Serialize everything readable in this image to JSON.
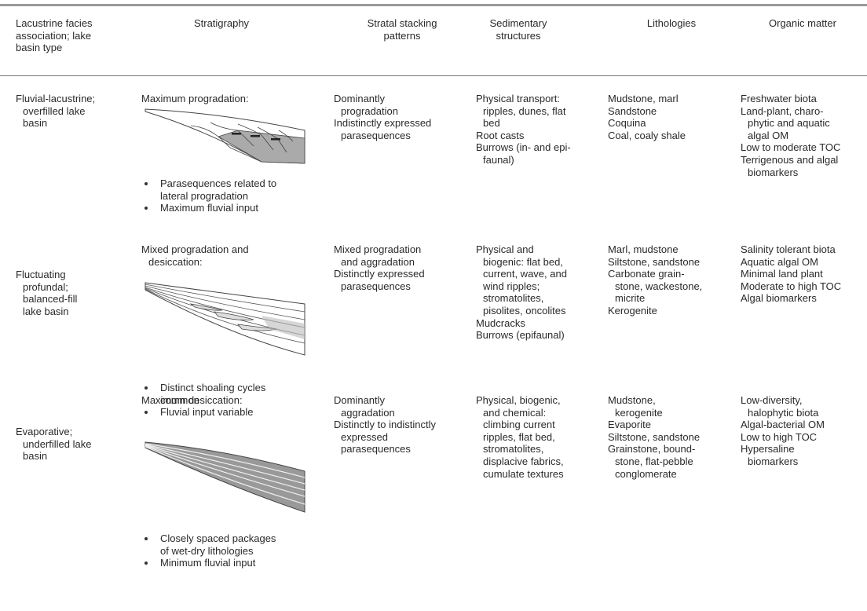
{
  "header": [
    [
      "Lacustrine facies",
      "association; lake",
      "basin type"
    ],
    [
      "Stratigraphy"
    ],
    [
      "Stratal stacking",
      "patterns"
    ],
    [
      "Sedimentary",
      "structures"
    ],
    [
      "Lithologies"
    ],
    [
      "Organic matter"
    ]
  ],
  "rows": [
    {
      "facies": [
        [
          "Fluvial-lacustrine;",
          "overfilled lake",
          "basin"
        ]
      ],
      "stratigraphy": {
        "heading": [
          "Maximum progradation:"
        ],
        "bullets": [
          [
            "Parasequences related to",
            "lateral progradation"
          ],
          [
            "Maximum fluvial input"
          ]
        ]
      },
      "stacking": [
        [
          "Dominantly",
          "progradation"
        ],
        [
          "Indistinctly expressed",
          "parasequences"
        ]
      ],
      "sedimentary": [
        [
          "Physical transport:",
          "ripples, dunes, flat",
          "bed"
        ],
        [
          "Root casts"
        ],
        [
          "Burrows (in- and epi-",
          "faunal)"
        ]
      ],
      "lithologies": [
        [
          "Mudstone, marl"
        ],
        [
          "Sandstone"
        ],
        [
          "Coquina"
        ],
        [
          "Coal, coaly shale"
        ]
      ],
      "organic": [
        [
          "Freshwater biota"
        ],
        [
          "Land-plant, charo-",
          "phytic and aquatic",
          "algal OM"
        ],
        [
          "Low to moderate TOC"
        ],
        [
          "Terrigenous and algal",
          "biomarkers"
        ]
      ]
    },
    {
      "facies": [
        [
          "Fluctuating",
          "profundal;",
          "balanced-fill",
          "lake basin"
        ]
      ],
      "stratigraphy": {
        "heading": [
          "Mixed progradation and",
          "desiccation:"
        ],
        "bullets": [
          [
            "Distinct shoaling cycles",
            "common"
          ],
          [
            "Fluvial input variable"
          ]
        ]
      },
      "stacking": [
        [
          "Mixed progradation",
          "and aggradation"
        ],
        [
          "Distinctly expressed",
          "parasequences"
        ]
      ],
      "sedimentary": [
        [
          "Physical and",
          "biogenic: flat bed,",
          "current, wave, and",
          "wind ripples;",
          "stromatolites,",
          "pisolites, oncolites"
        ],
        [
          "Mudcracks"
        ],
        [
          "Burrows (epifaunal)"
        ]
      ],
      "lithologies": [
        [
          "Marl, mudstone"
        ],
        [
          "Siltstone, sandstone"
        ],
        [
          "Carbonate grain-",
          "stone, wackestone,",
          "micrite"
        ],
        [
          "Kerogenite"
        ]
      ],
      "organic": [
        [
          "Salinity tolerant biota"
        ],
        [
          "Aquatic algal OM"
        ],
        [
          "Minimal land plant"
        ],
        [
          "Moderate to high TOC"
        ],
        [
          "Algal biomarkers"
        ]
      ]
    },
    {
      "facies": [
        [
          "Evaporative;",
          "underfilled lake",
          "basin"
        ]
      ],
      "stratigraphy": {
        "heading": [
          "Maximum desiccation:"
        ],
        "bullets": [
          [
            "Closely spaced packages",
            "of wet-dry lithologies"
          ],
          [
            "Minimum fluvial input"
          ]
        ]
      },
      "stacking": [
        [
          "Dominantly",
          "aggradation"
        ],
        [
          "Distinctly to indistinctly",
          "expressed",
          "parasequences"
        ]
      ],
      "sedimentary": [
        [
          "Physical, biogenic,",
          "and chemical:",
          "climbing current",
          "ripples, flat bed,",
          "stromatolites,",
          "displacive fabrics,",
          "cumulate textures"
        ]
      ],
      "lithologies": [
        [
          "Mudstone,",
          "kerogenite"
        ],
        [
          "Evaporite"
        ],
        [
          "Siltstone, sandstone"
        ],
        [
          "Grainstone, bound-",
          "stone, flat-pebble",
          "conglomerate"
        ]
      ],
      "organic": [
        [
          "Low-diversity,",
          "halophytic biota"
        ],
        [
          "Algal-bacterial OM"
        ],
        [
          "Low to high TOC"
        ],
        [
          "Hypersaline",
          "biomarkers"
        ]
      ]
    }
  ]
}
